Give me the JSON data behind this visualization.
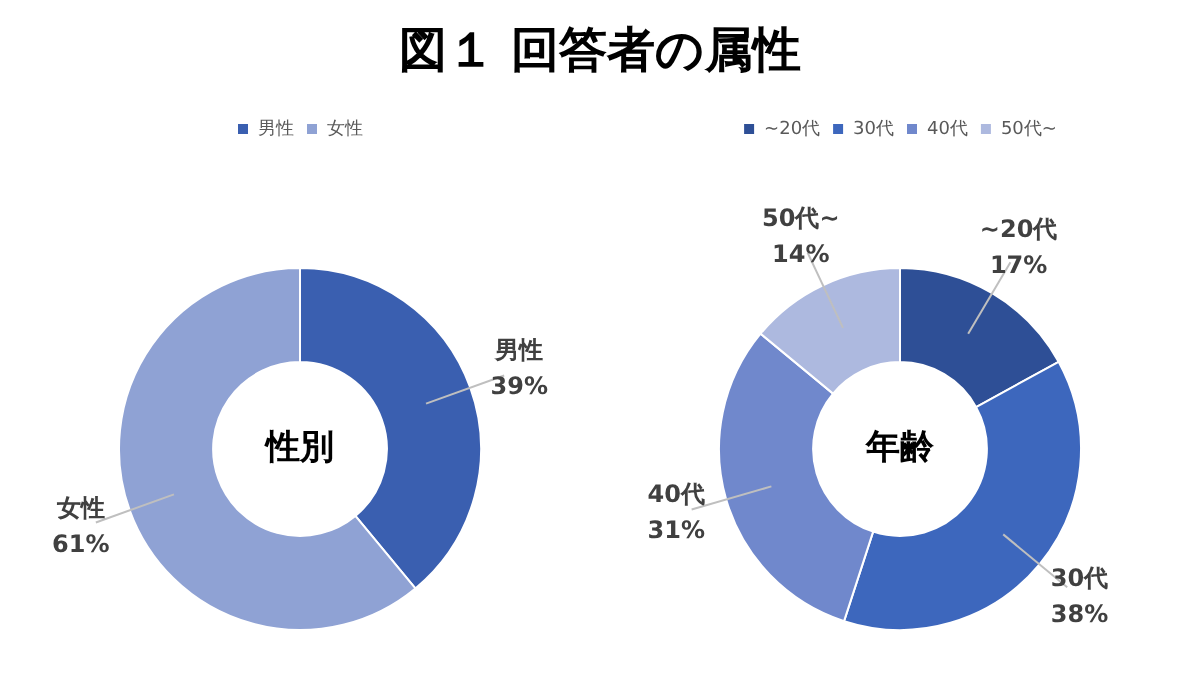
{
  "chart_data": [
    {
      "type": "donut",
      "title": "図１ 回答者の属性",
      "categories": [
        "男性",
        "女性"
      ],
      "values": [
        39,
        61
      ],
      "value_labels": [
        "39%",
        "61%"
      ],
      "colors": [
        "#3a5fb0",
        "#8fa2d4"
      ],
      "legend": "top",
      "annotations": [
        "性別"
      ]
    },
    {
      "type": "donut",
      "categories": [
        "~20代",
        "30代",
        "40代",
        "50代~"
      ],
      "values": [
        17,
        38,
        31,
        14
      ],
      "value_labels": [
        "17%",
        "38%",
        "31%",
        "14%"
      ],
      "colors": [
        "#2e4f96",
        "#3d67bd",
        "#7088cc",
        "#adb9df"
      ],
      "legend": "top",
      "annotations": [
        "年齢"
      ]
    }
  ]
}
